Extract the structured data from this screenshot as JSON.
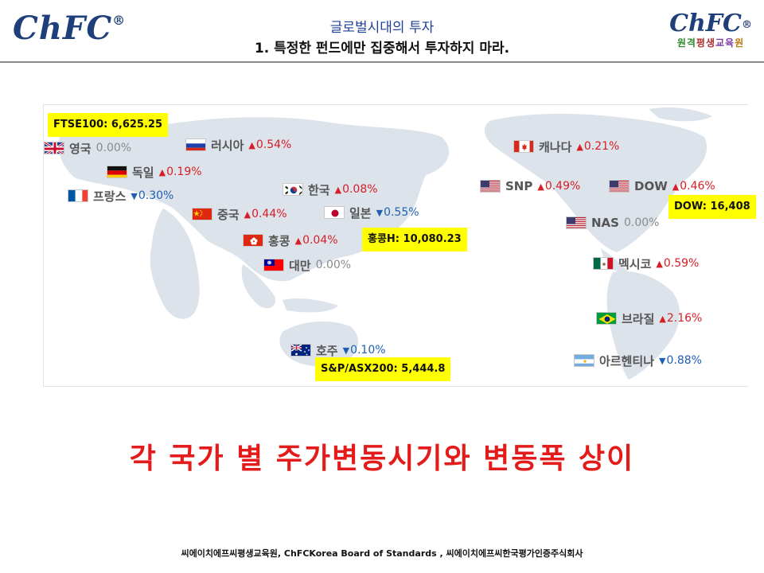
{
  "header": {
    "logo_left": "ChFC",
    "logo_right": "ChFC",
    "logo_right_sub": [
      "원격",
      "평생",
      "교육",
      "원"
    ],
    "title": "글로벌시대의 투자",
    "subtitle": "1. 특정한 펀드에만 집중해서 투자하지 마라."
  },
  "markets": [
    {
      "name": "영국",
      "change": "0.00%",
      "dir": "flat",
      "flag": "uk"
    },
    {
      "name": "러시아",
      "change": "0.54%",
      "dir": "up",
      "flag": "ru"
    },
    {
      "name": "독일",
      "change": "0.19%",
      "dir": "up",
      "flag": "de"
    },
    {
      "name": "프랑스",
      "change": "0.30%",
      "dir": "down",
      "flag": "fr"
    },
    {
      "name": "한국",
      "change": "0.08%",
      "dir": "up",
      "flag": "kr"
    },
    {
      "name": "중국",
      "change": "0.44%",
      "dir": "up",
      "flag": "cn"
    },
    {
      "name": "일본",
      "change": "0.55%",
      "dir": "down",
      "flag": "jp"
    },
    {
      "name": "홍콩",
      "change": "0.04%",
      "dir": "up",
      "flag": "hk"
    },
    {
      "name": "대만",
      "change": "0.00%",
      "dir": "flat",
      "flag": "tw"
    },
    {
      "name": "호주",
      "change": "0.10%",
      "dir": "down",
      "flag": "au"
    },
    {
      "name": "캐나다",
      "change": "0.21%",
      "dir": "up",
      "flag": "ca"
    },
    {
      "name": "SNP",
      "change": "0.49%",
      "dir": "up",
      "flag": "us"
    },
    {
      "name": "DOW",
      "change": "0.46%",
      "dir": "up",
      "flag": "us"
    },
    {
      "name": "NAS",
      "change": "0.00%",
      "dir": "flat",
      "flag": "us"
    },
    {
      "name": "멕시코",
      "change": "0.59%",
      "dir": "up",
      "flag": "mx"
    },
    {
      "name": "브라질",
      "change": "2.16%",
      "dir": "up",
      "flag": "br"
    },
    {
      "name": "아르헨티나",
      "change": "0.88%",
      "dir": "down",
      "flag": "ar"
    }
  ],
  "indices": {
    "ftse": "FTSE100:  6,625.25",
    "hangseng": "홍콩H:  10,080.23",
    "asx": "S&P/ASX200:  5,444.8",
    "dow": "DOW:  16,408"
  },
  "headline": "각 국가 별 주가변동시기와 변동폭 상이",
  "footer": "씨에이치에프씨평생교육원,  ChFCKorea  Board  of  Standards  ,  씨에이치에프씨한국평가인증주식회사",
  "colors": {
    "up": "#d71d25",
    "down": "#1f5fb5",
    "flat": "#8a8a8a",
    "headline": "#e31b1b",
    "index_box": "#ffff00",
    "title": "#1f3f9a",
    "logo": "#1f3f7a"
  }
}
